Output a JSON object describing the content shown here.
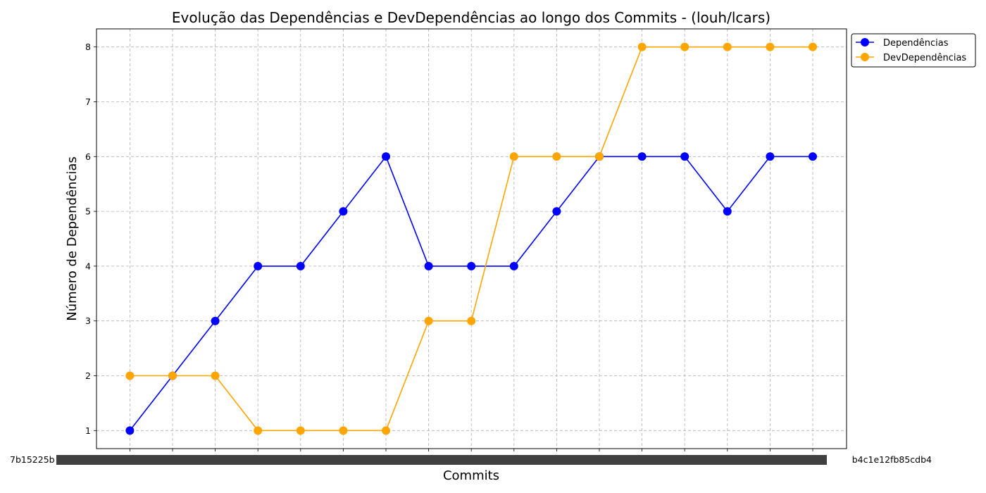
{
  "chart_data": {
    "type": "line",
    "title": "Evolução das Dependências e DevDependências ao longo dos Commits - (louh/lcars)",
    "xlabel": "Commits",
    "ylabel": "Número de Dependências",
    "ylim": [
      0.67,
      8.33
    ],
    "yticks": [
      1,
      2,
      3,
      4,
      5,
      6,
      7,
      8
    ],
    "grid": true,
    "legend_position": "upper-right-outside",
    "first_category_label": "7b15225b",
    "last_category_label": "b4c1e12fb85cdb4",
    "categories_count": 17,
    "series": [
      {
        "name": "Dependências",
        "color": "#0000ff",
        "values": [
          1,
          2,
          3,
          4,
          4,
          5,
          6,
          4,
          4,
          4,
          5,
          6,
          6,
          6,
          5,
          6,
          6
        ]
      },
      {
        "name": "DevDependências",
        "color": "#ffa500",
        "values": [
          2,
          2,
          2,
          1,
          1,
          1,
          1,
          3,
          3,
          6,
          6,
          6,
          8,
          8,
          8,
          8,
          8
        ]
      }
    ]
  }
}
